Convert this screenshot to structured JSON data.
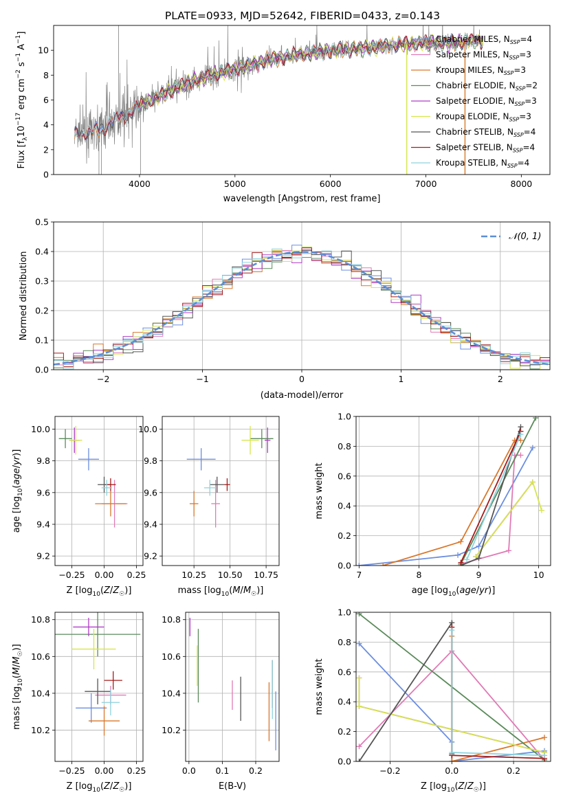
{
  "title": "PLATE=0933, MJD=52642, FIBERID=0433, z=0.143",
  "colors": {
    "Chabrier MILES": "#6b8ee0",
    "Salpeter MILES": "#e07ab5",
    "Kroupa MILES": "#d9772a",
    "Chabrier ELODIE": "#5a8a5a",
    "Salpeter ELODIE": "#b03ac8",
    "Kroupa ELODIE": "#d6e64a",
    "Chabrier STELIB": "#555555",
    "Salpeter STELIB": "#a51a1a",
    "Kroupa STELIB": "#8dd3dd",
    "data": "#808080",
    "normal": "#5b8ed6"
  },
  "chart_data": [
    {
      "id": "spectrum",
      "type": "line",
      "xlabel": "wavelength [Angstrom, rest frame]",
      "ylabel": "Flux [f_λ 10^-17 erg cm^-2 s^-1 A^-1]",
      "xlim": [
        3100,
        8300
      ],
      "ylim": [
        0,
        12
      ],
      "xticks": [
        4000,
        5000,
        6000,
        7000,
        8000
      ],
      "yticks": [
        0,
        2,
        4,
        6,
        8,
        10
      ],
      "grid": false,
      "legend_position": "top-right",
      "legend": [
        {
          "label": "Chabrier MILES, N",
          "sub": "SSP",
          "suffix": "=4"
        },
        {
          "label": "Salpeter MILES, N",
          "sub": "SSP",
          "suffix": "=3"
        },
        {
          "label": "Kroupa MILES, N",
          "sub": "SSP",
          "suffix": "=3"
        },
        {
          "label": "Chabrier ELODIE, N",
          "sub": "SSP",
          "suffix": "=2"
        },
        {
          "label": "Salpeter ELODIE, N",
          "sub": "SSP",
          "suffix": "=3"
        },
        {
          "label": "Kroupa ELODIE, N",
          "sub": "SSP",
          "suffix": "=3"
        },
        {
          "label": "Chabrier STELIB, N",
          "sub": "SSP",
          "suffix": "=4"
        },
        {
          "label": "Salpeter STELIB, N",
          "sub": "SSP",
          "suffix": "=4"
        },
        {
          "label": "Kroupa STELIB, N",
          "sub": "SSP",
          "suffix": "=4"
        }
      ],
      "continuum": [
        [
          3320,
          3.3
        ],
        [
          3500,
          3.4
        ],
        [
          3600,
          3.7
        ],
        [
          3700,
          4.2
        ],
        [
          3800,
          4.6
        ],
        [
          3900,
          5.0
        ],
        [
          4000,
          5.5
        ],
        [
          4200,
          6.3
        ],
        [
          4400,
          7.0
        ],
        [
          4600,
          7.6
        ],
        [
          4800,
          8.1
        ],
        [
          5000,
          8.5
        ],
        [
          5200,
          8.9
        ],
        [
          5400,
          9.3
        ],
        [
          5600,
          9.6
        ],
        [
          5800,
          9.8
        ],
        [
          6000,
          10.0
        ],
        [
          6200,
          10.1
        ],
        [
          6400,
          10.2
        ],
        [
          6600,
          10.4
        ],
        [
          6800,
          10.5
        ],
        [
          7000,
          10.6
        ],
        [
          7200,
          10.6
        ],
        [
          7400,
          10.7
        ],
        [
          7600,
          10.8
        ]
      ]
    },
    {
      "id": "residual-histogram",
      "type": "histogram",
      "xlabel": "(data-model)/error",
      "ylabel": "Normed distribution",
      "xlim": [
        -2.5,
        2.5
      ],
      "ylim": [
        0,
        0.5
      ],
      "xticks": [
        -2,
        -1,
        0,
        1,
        2
      ],
      "yticks": [
        0.0,
        0.1,
        0.2,
        0.3,
        0.4,
        0.5
      ],
      "grid": true,
      "bin_width": 0.1,
      "legend": "𝒩(0, 1)",
      "legend_position": "top-right"
    },
    {
      "id": "age-vs-metallicity",
      "type": "scatter",
      "xlabel": "Z [log₁₀(Z/Z☉)]",
      "ylabel": "age  [log₁₀(age/yr)]",
      "xlim": [
        -0.38,
        0.3
      ],
      "ylim": [
        9.14,
        10.08
      ],
      "xticks": [
        -0.25,
        0.0,
        0.25
      ],
      "yticks": [
        9.2,
        9.4,
        9.6,
        9.8,
        10.0
      ],
      "grid": true,
      "points": [
        {
          "model": "Chabrier MILES",
          "x": -0.12,
          "xerr": 0.08,
          "y": 9.81,
          "yerr": 0.07
        },
        {
          "model": "Salpeter MILES",
          "x": 0.08,
          "xerr": 0.1,
          "y": 9.53,
          "yerr": 0.15
        },
        {
          "model": "Kroupa MILES",
          "x": 0.05,
          "xerr": 0.12,
          "y": 9.53,
          "yerr": 0.08
        },
        {
          "model": "Chabrier ELODIE",
          "x": -0.3,
          "xerr": 0.05,
          "y": 9.94,
          "yerr": 0.06
        },
        {
          "model": "Salpeter ELODIE",
          "x": -0.23,
          "xerr": 0.04,
          "y": 9.93,
          "yerr": 0.08
        },
        {
          "model": "Kroupa ELODIE",
          "x": -0.22,
          "xerr": 0.05,
          "y": 9.93,
          "yerr": 0.09
        },
        {
          "model": "Chabrier STELIB",
          "x": 0.0,
          "xerr": 0.05,
          "y": 9.65,
          "yerr": 0.05
        },
        {
          "model": "Salpeter STELIB",
          "x": 0.05,
          "xerr": 0.04,
          "y": 9.65,
          "yerr": 0.04
        },
        {
          "model": "Kroupa STELIB",
          "x": 0.02,
          "xerr": 0.04,
          "y": 9.63,
          "yerr": 0.05
        }
      ]
    },
    {
      "id": "age-vs-mass",
      "type": "scatter",
      "xlabel": "mass [log₁₀(M/M☉)]",
      "ylabel": "",
      "xlim": [
        10.03,
        10.84
      ],
      "ylim": [
        9.14,
        10.08
      ],
      "xticks": [
        10.25,
        10.5,
        10.75
      ],
      "yticks": [
        9.2,
        9.4,
        9.6,
        9.8,
        10.0
      ],
      "grid": true,
      "points": [
        {
          "model": "Chabrier MILES",
          "x": 10.3,
          "xerr": 0.1,
          "y": 9.81,
          "yerr": 0.07
        },
        {
          "model": "Salpeter MILES",
          "x": 10.4,
          "xerr": 0.03,
          "y": 9.53,
          "yerr": 0.15
        },
        {
          "model": "Kroupa MILES",
          "x": 10.25,
          "xerr": 0.03,
          "y": 9.53,
          "yerr": 0.08
        },
        {
          "model": "Chabrier ELODIE",
          "x": 10.72,
          "xerr": 0.08,
          "y": 9.94,
          "yerr": 0.06
        },
        {
          "model": "Salpeter ELODIE",
          "x": 10.76,
          "xerr": 0.02,
          "y": 9.93,
          "yerr": 0.08
        },
        {
          "model": "Kroupa ELODIE",
          "x": 10.64,
          "xerr": 0.06,
          "y": 9.93,
          "yerr": 0.09
        },
        {
          "model": "Chabrier STELIB",
          "x": 10.41,
          "xerr": 0.05,
          "y": 9.65,
          "yerr": 0.05
        },
        {
          "model": "Salpeter STELIB",
          "x": 10.48,
          "xerr": 0.02,
          "y": 9.65,
          "yerr": 0.04
        },
        {
          "model": "Kroupa STELIB",
          "x": 10.36,
          "xerr": 0.04,
          "y": 9.63,
          "yerr": 0.05
        }
      ]
    },
    {
      "id": "cumulative-mass-weight-vs-age",
      "type": "line",
      "xlabel": "age  [log₁₀(age/yr)]",
      "ylabel": "mass weight",
      "xlim": [
        6.95,
        10.2
      ],
      "ylim": [
        0,
        1
      ],
      "xticks": [
        7,
        8,
        9,
        10
      ],
      "yticks": [
        0.0,
        0.2,
        0.4,
        0.6,
        0.8,
        1.0
      ],
      "grid": true,
      "series": [
        {
          "model": "Chabrier MILES",
          "x": [
            7.0,
            8.65,
            9.0,
            9.9
          ],
          "y": [
            0.0,
            0.07,
            0.13,
            0.79
          ]
        },
        {
          "model": "Salpeter MILES",
          "x": [
            8.7,
            9.5,
            9.6,
            9.7
          ],
          "y": [
            0.01,
            0.1,
            0.74,
            0.74
          ]
        },
        {
          "model": "Kroupa MILES",
          "x": [
            7.4,
            8.7,
            9.6,
            9.7
          ],
          "y": [
            0.0,
            0.16,
            0.84,
            0.84
          ]
        },
        {
          "model": "Chabrier ELODIE",
          "x": [
            8.7,
            9.95
          ],
          "y": [
            0.01,
            0.99
          ]
        },
        {
          "model": "Salpeter ELODIE",
          "x": [
            8.95,
            9.9
          ],
          "y": [
            0.06,
            0.56
          ]
        },
        {
          "model": "Kroupa ELODIE",
          "x": [
            8.95,
            9.9,
            10.05
          ],
          "y": [
            0.06,
            0.56,
            0.37
          ]
        },
        {
          "model": "Chabrier STELIB",
          "x": [
            8.7,
            9.0,
            9.7
          ],
          "y": [
            0.0,
            0.05,
            0.93
          ]
        },
        {
          "model": "Salpeter STELIB",
          "x": [
            8.7,
            9.7
          ],
          "y": [
            0.02,
            0.9
          ]
        },
        {
          "model": "Kroupa STELIB",
          "x": [
            8.8,
            9.7
          ],
          "y": [
            0.04,
            0.88
          ]
        }
      ]
    },
    {
      "id": "mass-vs-metallicity",
      "type": "scatter",
      "xlabel": "Z [log₁₀(Z/Z☉)]",
      "ylabel": "mass [log₁₀(M/M☉)]",
      "xlim": [
        -0.38,
        0.3
      ],
      "ylim": [
        10.03,
        10.84
      ],
      "xticks": [
        -0.25,
        0.0,
        0.25
      ],
      "yticks": [
        10.2,
        10.4,
        10.6,
        10.8
      ],
      "grid": true,
      "points": [
        {
          "model": "Chabrier MILES",
          "x": -0.1,
          "xerr": 0.12,
          "y": 10.32,
          "yerr": 0.08
        },
        {
          "model": "Salpeter MILES",
          "x": 0.05,
          "xerr": 0.12,
          "y": 10.39,
          "yerr": 0.05
        },
        {
          "model": "Kroupa MILES",
          "x": 0.0,
          "xerr": 0.12,
          "y": 10.25,
          "yerr": 0.08
        },
        {
          "model": "Chabrier ELODIE",
          "x": -0.05,
          "xerr": 0.33,
          "y": 10.72,
          "yerr": 0.12
        },
        {
          "model": "Salpeter ELODIE",
          "x": -0.12,
          "xerr": 0.12,
          "y": 10.76,
          "yerr": 0.05
        },
        {
          "model": "Kroupa ELODIE",
          "x": -0.08,
          "xerr": 0.17,
          "y": 10.64,
          "yerr": 0.11
        },
        {
          "model": "Chabrier STELIB",
          "x": -0.05,
          "xerr": 0.1,
          "y": 10.41,
          "yerr": 0.07
        },
        {
          "model": "Salpeter STELIB",
          "x": 0.07,
          "xerr": 0.07,
          "y": 10.47,
          "yerr": 0.05
        },
        {
          "model": "Kroupa STELIB",
          "x": 0.05,
          "xerr": 0.07,
          "y": 10.35,
          "yerr": 0.07
        }
      ]
    },
    {
      "id": "mass-vs-extinction",
      "type": "scatter",
      "xlabel": "E(B-V)",
      "ylabel": "",
      "xlim": [
        -0.01,
        0.27
      ],
      "ylim": [
        10.03,
        10.84
      ],
      "xticks": [
        0.0,
        0.1,
        0.2
      ],
      "yticks": [
        10.2,
        10.4,
        10.6,
        10.8
      ],
      "grid": true,
      "points": [
        {
          "model": "Chabrier MILES",
          "x": 0.26,
          "xerr": 0.0,
          "y": 10.25,
          "yerr": 0.16
        },
        {
          "model": "Salpeter MILES",
          "x": 0.13,
          "xerr": 0.0,
          "y": 10.39,
          "yerr": 0.08
        },
        {
          "model": "Kroupa MILES",
          "x": 0.24,
          "xerr": 0.0,
          "y": 10.3,
          "yerr": 0.16
        },
        {
          "model": "Chabrier ELODIE",
          "x": 0.028,
          "xerr": 0.0,
          "y": 10.55,
          "yerr": 0.2
        },
        {
          "model": "Salpeter ELODIE",
          "x": 0.003,
          "xerr": 0.0,
          "y": 10.76,
          "yerr": 0.05
        },
        {
          "model": "Kroupa ELODIE",
          "x": 0.025,
          "xerr": 0.0,
          "y": 10.55,
          "yerr": 0.11
        },
        {
          "model": "Chabrier STELIB",
          "x": 0.155,
          "xerr": 0.0,
          "y": 10.37,
          "yerr": 0.12
        },
        {
          "model": "Salpeter STELIB",
          "x": 0.25,
          "xerr": 0.0,
          "y": 10.45,
          "yerr": 0.13
        },
        {
          "model": "Kroupa STELIB",
          "x": 0.25,
          "xerr": 0.0,
          "y": 10.42,
          "yerr": 0.16
        }
      ]
    },
    {
      "id": "cumulative-mass-weight-vs-metallicity",
      "type": "line",
      "xlabel": "Z [log₁₀(Z/Z☉)]",
      "ylabel": "mass weight",
      "xlim": [
        -0.31,
        0.32
      ],
      "ylim": [
        0,
        1
      ],
      "xticks": [
        -0.2,
        0.0,
        0.2
      ],
      "yticks": [
        0.0,
        0.2,
        0.4,
        0.6,
        0.8,
        1.0
      ],
      "grid": true,
      "series": [
        {
          "model": "Chabrier MILES",
          "x": [
            -0.3,
            0.0,
            0.0,
            0.3
          ],
          "y": [
            0.79,
            0.13,
            0.0,
            0.07
          ]
        },
        {
          "model": "Salpeter MILES",
          "x": [
            -0.3,
            0.0,
            0.3
          ],
          "y": [
            0.1,
            0.74,
            0.01
          ]
        },
        {
          "model": "Kroupa MILES",
          "x": [
            0.0,
            0.0,
            0.3
          ],
          "y": [
            0.84,
            0.0,
            0.16
          ]
        },
        {
          "model": "Chabrier ELODIE",
          "x": [
            -0.3,
            0.3
          ],
          "y": [
            0.99,
            0.01
          ]
        },
        {
          "model": "Salpeter ELODIE",
          "x": [
            -0.3,
            -0.3,
            0.3
          ],
          "y": [
            0.56,
            0.37,
            0.06
          ]
        },
        {
          "model": "Kroupa ELODIE",
          "x": [
            -0.3,
            -0.3,
            0.3
          ],
          "y": [
            0.56,
            0.37,
            0.06
          ]
        },
        {
          "model": "Chabrier STELIB",
          "x": [
            -0.3,
            0.0,
            0.0
          ],
          "y": [
            0.0,
            0.93,
            0.05
          ]
        },
        {
          "model": "Salpeter STELIB",
          "x": [
            0.0,
            0.0,
            0.3
          ],
          "y": [
            0.9,
            0.04,
            0.02
          ]
        },
        {
          "model": "Kroupa STELIB",
          "x": [
            0.0,
            0.0,
            0.3
          ],
          "y": [
            0.88,
            0.06,
            0.04
          ]
        }
      ]
    }
  ]
}
